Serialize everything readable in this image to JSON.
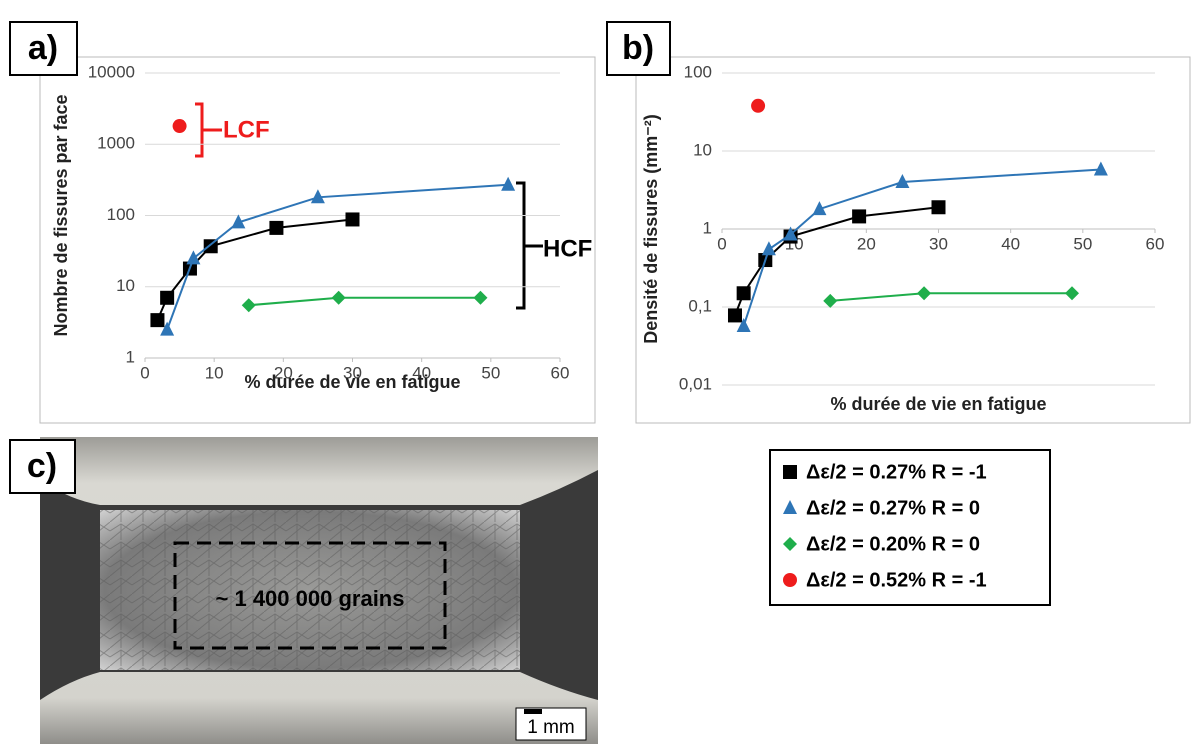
{
  "panels": [
    "a)",
    "b)",
    "c)"
  ],
  "annotations": {
    "lcf": "LCF",
    "hcf": "HCF",
    "grains": "~ 1 400 000 grains",
    "scale": "1 mm"
  },
  "chart_data": [
    {
      "type": "line",
      "ylog": true,
      "grid": true,
      "x_label": "% durée de vie en fatigue",
      "y_label": "Nombre de fissures par face",
      "xlim": [
        0,
        60
      ],
      "xticks": [
        0,
        10,
        20,
        30,
        40,
        50,
        60
      ],
      "ylim": [
        1,
        10000
      ],
      "yticks": [
        1,
        10,
        100,
        1000,
        10000
      ],
      "series": [
        {
          "name": "Δε/2 =  0.27% R = -1",
          "color": "#000000",
          "marker": "square",
          "x": [
            1.8,
            3.2,
            6.5,
            9.5,
            19,
            30
          ],
          "values": [
            3.4,
            7,
            18,
            37,
            67,
            88
          ]
        },
        {
          "name": "Δε/2 =  0.27% R = 0",
          "color": "#2e75b6",
          "marker": "triangle",
          "x": [
            3.2,
            7,
            13.5,
            25,
            52.5
          ],
          "values": [
            2.5,
            25,
            80,
            180,
            270
          ]
        },
        {
          "name": "Δε/2 =  0.20% R = 0",
          "color": "#1fae4b",
          "marker": "diamond",
          "x": [
            15,
            28,
            48.5
          ],
          "values": [
            5.5,
            7,
            7
          ]
        },
        {
          "name": "Δε/2 =  0.52% R = -1",
          "color": "#ee1c1c",
          "marker": "circle",
          "x": [
            5
          ],
          "values": [
            1800
          ]
        }
      ]
    },
    {
      "type": "line",
      "ylog": true,
      "grid": true,
      "x_label": "% durée de vie en fatigue",
      "y_label": "Densité de fissures (mm⁻²)",
      "xlim": [
        0,
        60
      ],
      "xticks": [
        0,
        10,
        20,
        30,
        40,
        50,
        60
      ],
      "xaxis_at": 1,
      "ylim": [
        0.01,
        100
      ],
      "yticks": [
        {
          "value": 0.01,
          "label": "0,01"
        },
        {
          "value": 0.1,
          "label": "0,1"
        },
        1,
        10,
        100
      ],
      "series": [
        {
          "color": "#000000",
          "marker": "square",
          "x": [
            1.8,
            3,
            6,
            9.5,
            19,
            30
          ],
          "values": [
            0.078,
            0.15,
            0.4,
            0.8,
            1.45,
            1.9
          ]
        },
        {
          "color": "#2e75b6",
          "marker": "triangle",
          "x": [
            3,
            6.5,
            9.5,
            13.5,
            25,
            52.5
          ],
          "values": [
            0.057,
            0.55,
            0.85,
            1.8,
            4,
            5.8
          ]
        },
        {
          "color": "#1fae4b",
          "marker": "diamond",
          "x": [
            15,
            28,
            48.5
          ],
          "values": [
            0.12,
            0.15,
            0.15
          ]
        },
        {
          "color": "#ee1c1c",
          "marker": "circle",
          "x": [
            5
          ],
          "values": [
            38
          ]
        }
      ]
    }
  ]
}
